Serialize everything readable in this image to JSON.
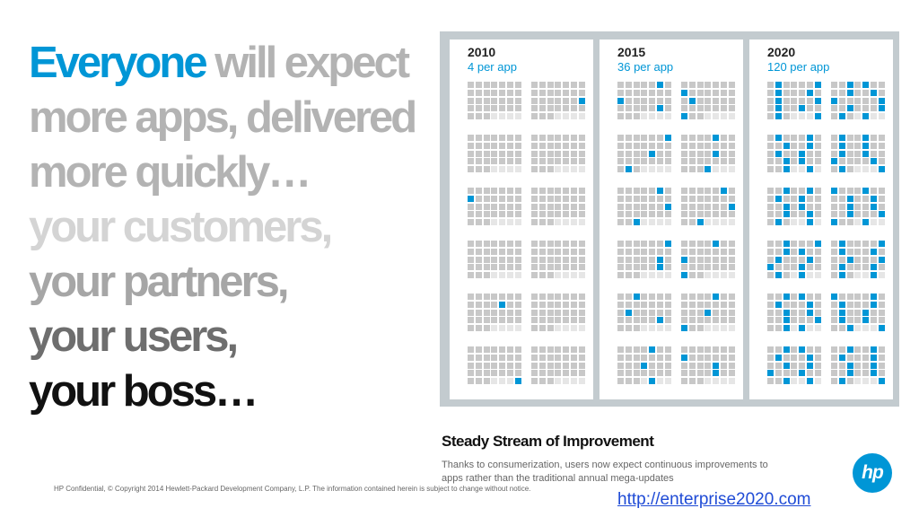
{
  "headline": {
    "line1_accent": "Everyone",
    "line1_rest": " will expect",
    "line2": "more apps, delivered",
    "line3": "more quickly…",
    "line4": "your customers,",
    "line5": "your partners,",
    "line6": "your users,",
    "line7": "your boss…"
  },
  "colors": {
    "accent": "#0096d6",
    "panel_bg": "#c3cbcf",
    "cell_off": "#c8c8c8",
    "cell_on": "#0096d6"
  },
  "columns": [
    {
      "year": "2010",
      "rate": "4 per app",
      "updates_per_year": 4
    },
    {
      "year": "2015",
      "rate": "36 per app",
      "updates_per_year": 36
    },
    {
      "year": "2020",
      "rate": "120 per app",
      "updates_per_year": 120
    }
  ],
  "stream": {
    "title": "Steady Stream of Improvement",
    "description": "Thanks to consumerization, users now expect continuous improvements to apps rather than the traditional annual mega-updates"
  },
  "footnote": "HP Confidential, © Copyright 2014 Hewlett-Packard Development Company, L.P. The information contained herein is subject to change without notice.",
  "link": "http://enterprise2020.com",
  "logo": {
    "text": "hp",
    "icon": "hp-logo-icon"
  }
}
